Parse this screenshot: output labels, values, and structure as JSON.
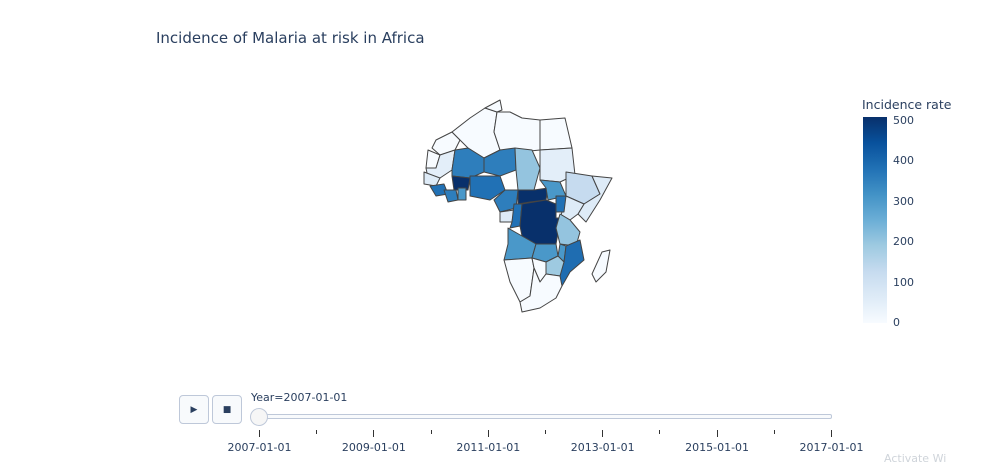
{
  "watermark": "Activate Wi",
  "chart_data": {
    "type": "choropleth",
    "title": "Incidence of Malaria at risk in Africa",
    "region": "Africa",
    "colorbar": {
      "title": "Incidence rate",
      "range": [
        0,
        510
      ],
      "ticks": [
        "500",
        "400",
        "300",
        "200",
        "100",
        "0"
      ],
      "tick_values": [
        500,
        400,
        300,
        200,
        100,
        0
      ],
      "colorscale": "Blues"
    },
    "slider": {
      "current_label": "Year=2007-01-01",
      "current": "2007-01-01",
      "ticks": [
        "2007-01-01",
        "2009-01-01",
        "2011-01-01",
        "2013-01-01",
        "2015-01-01",
        "2017-01-01"
      ]
    },
    "controls": {
      "play": "▶",
      "stop": "■"
    }
  }
}
